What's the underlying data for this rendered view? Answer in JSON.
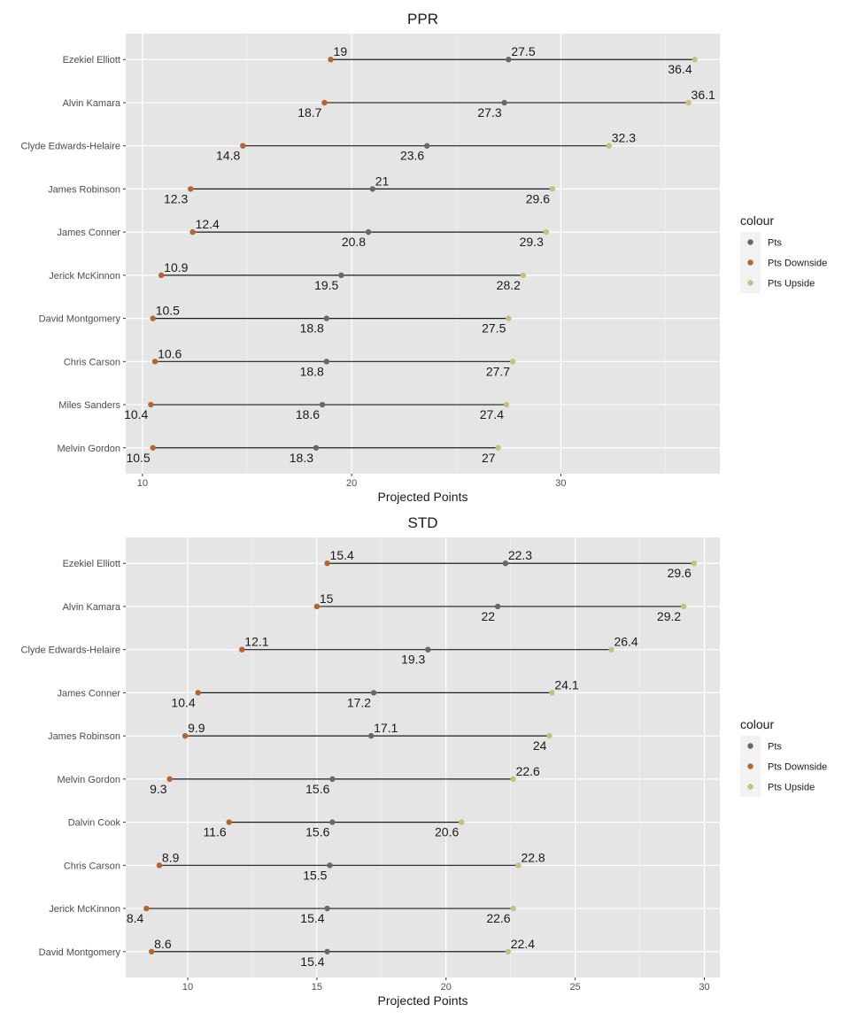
{
  "colors": {
    "panel_bg": "#e5e5e5",
    "grid": "#ffffff",
    "segment": "#1a1a1a",
    "pts": "#5e6e66",
    "pts_downside": "#b5652d",
    "pts_upside": "#c4c07f",
    "legend_key_bg": "#f2f2f2"
  },
  "legend": {
    "title": "colour",
    "entries": [
      {
        "label": "Pts",
        "color": "#5e6e66"
      },
      {
        "label": "Pts Downside",
        "color": "#b5652d"
      },
      {
        "label": "Pts Upside",
        "color": "#c4c07f"
      }
    ]
  },
  "chart_data": [
    {
      "type": "dumbbell",
      "title": "PPR",
      "xlabel": "Projected Points",
      "xlim": [
        9.2,
        37.6
      ],
      "xticks": [
        10,
        20,
        30
      ],
      "players": [
        {
          "name": "Ezekiel Elliott",
          "downside": 19,
          "pts": 27.5,
          "upside": 36.4
        },
        {
          "name": "Alvin Kamara",
          "downside": 18.7,
          "pts": 27.3,
          "upside": 36.1
        },
        {
          "name": "Clyde Edwards-Helaire",
          "downside": 14.8,
          "pts": 23.6,
          "upside": 32.3
        },
        {
          "name": "James Robinson",
          "downside": 12.3,
          "pts": 21,
          "upside": 29.6
        },
        {
          "name": "James Conner",
          "downside": 12.4,
          "pts": 20.8,
          "upside": 29.3
        },
        {
          "name": "Jerick McKinnon",
          "downside": 10.9,
          "pts": 19.5,
          "upside": 28.2
        },
        {
          "name": "David Montgomery",
          "downside": 10.5,
          "pts": 18.8,
          "upside": 27.5
        },
        {
          "name": "Chris Carson",
          "downside": 10.6,
          "pts": 18.8,
          "upside": 27.7
        },
        {
          "name": "Miles Sanders",
          "downside": 10.4,
          "pts": 18.6,
          "upside": 27.4
        },
        {
          "name": "Melvin Gordon",
          "downside": 10.5,
          "pts": 18.3,
          "upside": 27
        }
      ]
    },
    {
      "type": "dumbbell",
      "title": "STD",
      "xlabel": "Projected Points",
      "xlim": [
        7.6,
        30.6
      ],
      "xticks": [
        10,
        15,
        20,
        25,
        30
      ],
      "players": [
        {
          "name": "Ezekiel Elliott",
          "downside": 15.4,
          "pts": 22.3,
          "upside": 29.6
        },
        {
          "name": "Alvin Kamara",
          "downside": 15,
          "pts": 22,
          "upside": 29.2
        },
        {
          "name": "Clyde Edwards-Helaire",
          "downside": 12.1,
          "pts": 19.3,
          "upside": 26.4
        },
        {
          "name": "James Conner",
          "downside": 10.4,
          "pts": 17.2,
          "upside": 24.1
        },
        {
          "name": "James Robinson",
          "downside": 9.9,
          "pts": 17.1,
          "upside": 24
        },
        {
          "name": "Melvin Gordon",
          "downside": 9.3,
          "pts": 15.6,
          "upside": 22.6
        },
        {
          "name": "Dalvin Cook",
          "downside": 11.6,
          "pts": 15.6,
          "upside": 20.6
        },
        {
          "name": "Chris Carson",
          "downside": 8.9,
          "pts": 15.5,
          "upside": 22.8
        },
        {
          "name": "Jerick McKinnon",
          "downside": 8.4,
          "pts": 15.4,
          "upside": 22.6
        },
        {
          "name": "David Montgomery",
          "downside": 8.6,
          "pts": 15.4,
          "upside": 22.4
        }
      ]
    }
  ]
}
